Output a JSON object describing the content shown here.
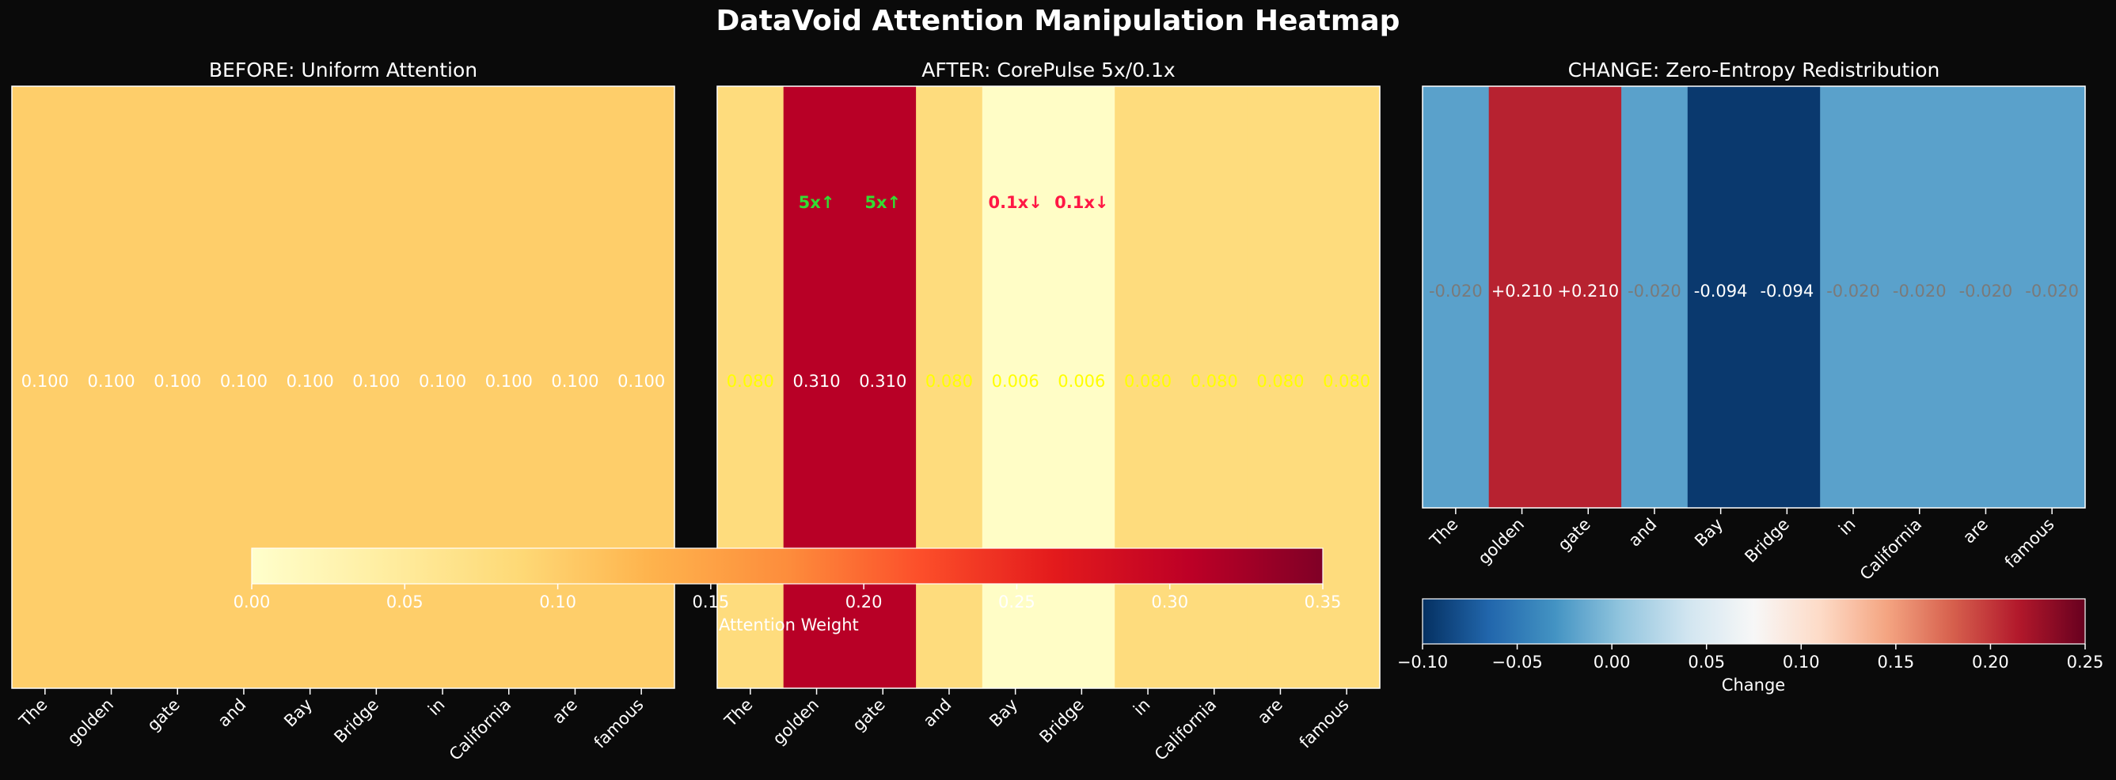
{
  "title": "DataVoid Attention Manipulation Heatmap",
  "chart_data": [
    {
      "type": "heatmap",
      "title": "BEFORE: Uniform Attention",
      "categories": [
        "The",
        "golden",
        "gate",
        "and",
        "Bay",
        "Bridge",
        "in",
        "California",
        "are",
        "famous"
      ],
      "values": [
        0.1,
        0.1,
        0.1,
        0.1,
        0.1,
        0.1,
        0.1,
        0.1,
        0.1,
        0.1
      ],
      "value_labels": [
        "0.100",
        "0.100",
        "0.100",
        "0.100",
        "0.100",
        "0.100",
        "0.100",
        "0.100",
        "0.100",
        "0.100"
      ],
      "colormap": "YlOrRd",
      "vmin": 0,
      "vmax": 0.35
    },
    {
      "type": "heatmap",
      "title": "AFTER: CorePulse 5x/0.1x",
      "categories": [
        "The",
        "golden",
        "gate",
        "and",
        "Bay",
        "Bridge",
        "in",
        "California",
        "are",
        "famous"
      ],
      "values": [
        0.08,
        0.31,
        0.31,
        0.08,
        0.006,
        0.006,
        0.08,
        0.08,
        0.08,
        0.08
      ],
      "value_labels": [
        "0.080",
        "0.310",
        "0.310",
        "0.080",
        "0.006",
        "0.006",
        "0.080",
        "0.080",
        "0.080",
        "0.080"
      ],
      "annotations": [
        {
          "token": "golden",
          "text": "5x↑",
          "color": "#33dd33"
        },
        {
          "token": "gate",
          "text": "5x↑",
          "color": "#33dd33"
        },
        {
          "token": "Bay",
          "text": "0.1x↓",
          "color": "#ff1744"
        },
        {
          "token": "Bridge",
          "text": "0.1x↓",
          "color": "#ff1744"
        }
      ],
      "colormap": "YlOrRd",
      "vmin": 0,
      "vmax": 0.35,
      "colorbar": {
        "label": "Attention Weight",
        "ticks": [
          0,
          0.05,
          0.1,
          0.15,
          0.2,
          0.25,
          0.3,
          0.35
        ],
        "tick_labels": [
          "0.00",
          "0.05",
          "0.10",
          "0.15",
          "0.20",
          "0.25",
          "0.30",
          "0.35"
        ]
      }
    },
    {
      "type": "heatmap",
      "title": "CHANGE: Zero-Entropy Redistribution",
      "categories": [
        "The",
        "golden",
        "gate",
        "and",
        "Bay",
        "Bridge",
        "in",
        "California",
        "are",
        "famous"
      ],
      "values": [
        -0.02,
        0.21,
        0.21,
        -0.02,
        -0.094,
        -0.094,
        -0.02,
        -0.02,
        -0.02,
        -0.02
      ],
      "value_labels": [
        "-0.020",
        "+0.210",
        "+0.210",
        "-0.020",
        "-0.094",
        "-0.094",
        "-0.020",
        "-0.020",
        "-0.020",
        "-0.020"
      ],
      "colormap": "RdBu_r",
      "vmin": -0.1,
      "vmax": 0.25,
      "colorbar": {
        "label": "Change",
        "ticks": [
          -0.1,
          -0.05,
          0,
          0.05,
          0.1,
          0.15,
          0.2,
          0.25
        ],
        "tick_labels": [
          "−0.10",
          "−0.05",
          "0.00",
          "0.05",
          "0.10",
          "0.15",
          "0.20",
          "0.25"
        ]
      }
    }
  ]
}
